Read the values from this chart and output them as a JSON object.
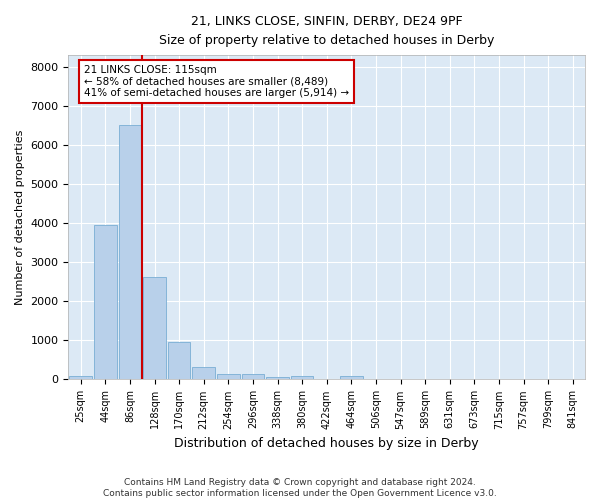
{
  "title1": "21, LINKS CLOSE, SINFIN, DERBY, DE24 9PF",
  "title2": "Size of property relative to detached houses in Derby",
  "xlabel": "Distribution of detached houses by size in Derby",
  "ylabel": "Number of detached properties",
  "bar_labels": [
    "25sqm",
    "44sqm",
    "86sqm",
    "128sqm",
    "170sqm",
    "212sqm",
    "254sqm",
    "296sqm",
    "338sqm",
    "380sqm",
    "422sqm",
    "464sqm",
    "506sqm",
    "547sqm",
    "589sqm",
    "631sqm",
    "673sqm",
    "715sqm",
    "757sqm",
    "799sqm",
    "841sqm"
  ],
  "bar_values": [
    100,
    3950,
    6500,
    2620,
    950,
    330,
    150,
    140,
    70,
    80,
    0,
    80,
    0,
    0,
    0,
    0,
    0,
    0,
    0,
    0,
    0
  ],
  "bar_color": "#b8d0ea",
  "bar_edge_color": "#7aaed4",
  "background_color": "#dce9f5",
  "fig_background": "#ffffff",
  "grid_color": "#ffffff",
  "red_line_x": 2.5,
  "annotation_text": "21 LINKS CLOSE: 115sqm\n← 58% of detached houses are smaller (8,489)\n41% of semi-detached houses are larger (5,914) →",
  "annotation_box_color": "#ffffff",
  "annotation_box_edge": "#cc0000",
  "ylim": [
    0,
    8300
  ],
  "yticks": [
    0,
    1000,
    2000,
    3000,
    4000,
    5000,
    6000,
    7000,
    8000
  ],
  "footnote1": "Contains HM Land Registry data © Crown copyright and database right 2024.",
  "footnote2": "Contains public sector information licensed under the Open Government Licence v3.0."
}
